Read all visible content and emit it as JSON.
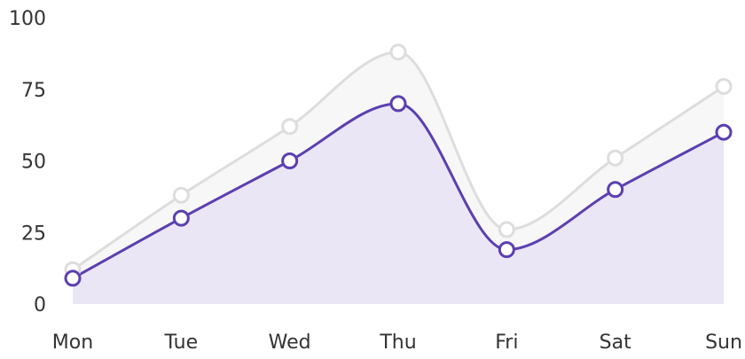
{
  "chart_data": {
    "type": "area",
    "categories": [
      "Mon",
      "Tue",
      "Wed",
      "Thu",
      "Fri",
      "Sat",
      "Sun"
    ],
    "series": [
      {
        "values": [
          12,
          38,
          62,
          88,
          26,
          51,
          76
        ],
        "color": "#dddddd",
        "fill": "#f7f7f7"
      },
      {
        "values": [
          9,
          30,
          50,
          70,
          19,
          40,
          60
        ],
        "color": "#5b3fb0",
        "fill": "#ebe6f5"
      }
    ],
    "ylim": [
      0,
      100
    ],
    "yticks": [
      0,
      25,
      50,
      75,
      100
    ],
    "grid": false,
    "legend": "none"
  }
}
